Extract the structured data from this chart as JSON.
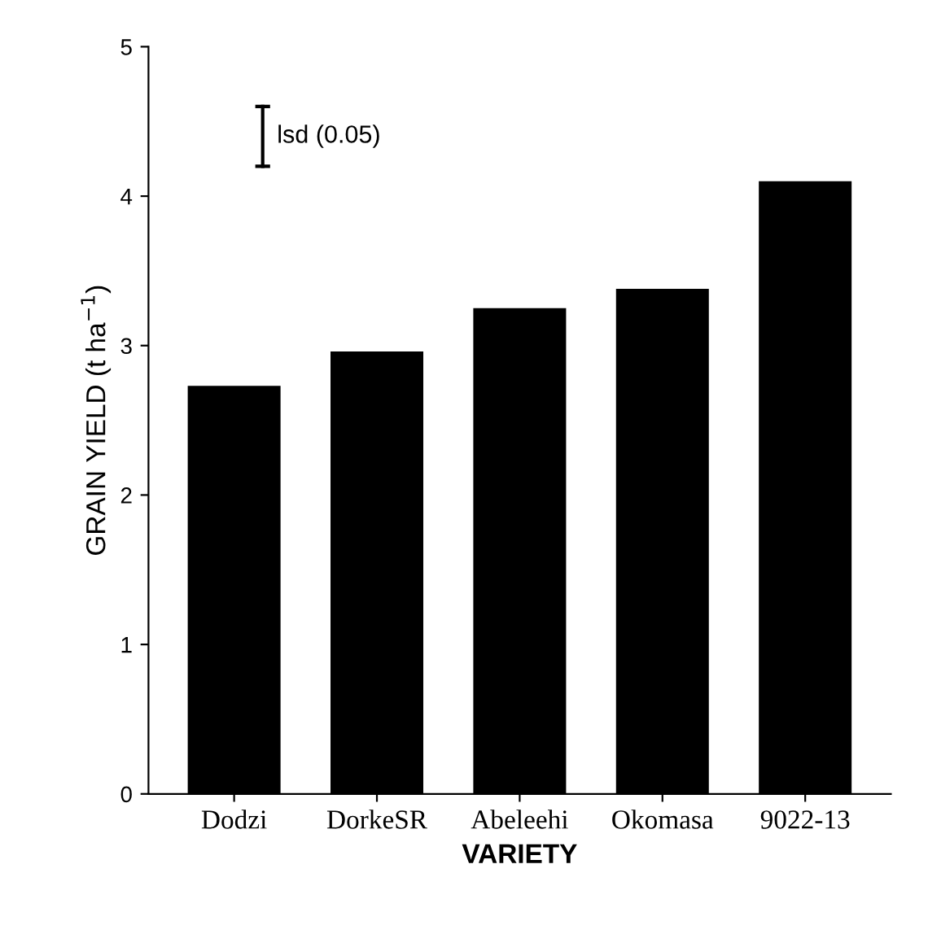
{
  "chart_data": {
    "type": "bar",
    "xlabel": "VARIETY",
    "ylabel": "GRAIN YIELD (t ha$^{−1}$)",
    "categories": [
      "Dodzi",
      "DorkeSR",
      "Abeleehi",
      "Okomasa",
      "9022-13"
    ],
    "values": [
      2.73,
      2.96,
      3.25,
      3.38,
      4.1
    ],
    "color": "#000000",
    "ylim": [
      0,
      5
    ],
    "yticks": [
      0,
      1,
      2,
      3,
      4,
      5
    ],
    "annotations": [
      "lsd (0.05)"
    ]
  }
}
